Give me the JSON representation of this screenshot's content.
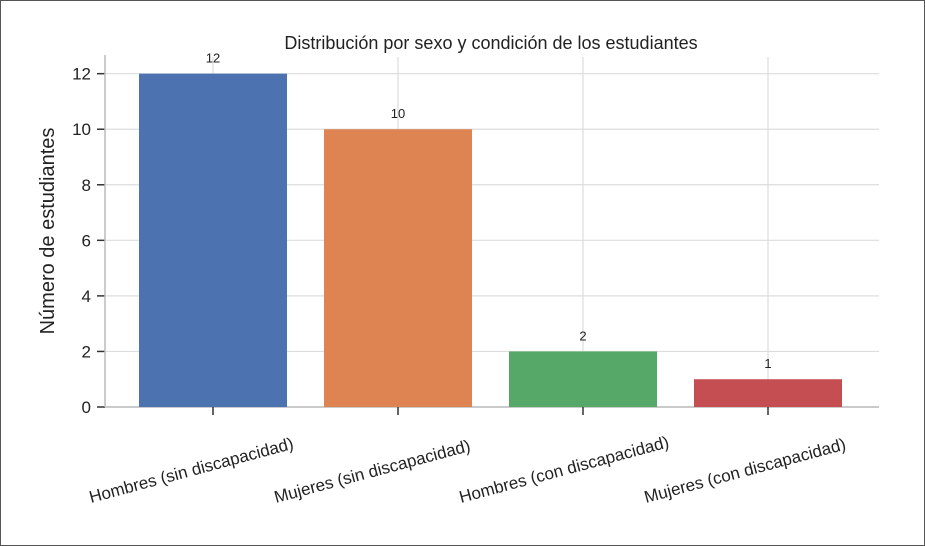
{
  "chart_data": {
    "type": "bar",
    "title": "Distribución por sexo y condición de los estudiantes",
    "xlabel": "",
    "ylabel": "Número de estudiantes",
    "categories": [
      "Hombres (sin discapacidad)",
      "Mujeres (sin discapacidad)",
      "Hombres (con discapacidad)",
      "Mujeres (con discapacidad)"
    ],
    "values": [
      12,
      10,
      2,
      1
    ],
    "colors": [
      "#4c72b0",
      "#dd8452",
      "#55a868",
      "#c44e52"
    ],
    "ylim": [
      0,
      12.6
    ],
    "yticks": [
      0,
      2,
      4,
      6,
      8,
      10,
      12
    ],
    "grid": true,
    "legend": "none"
  }
}
